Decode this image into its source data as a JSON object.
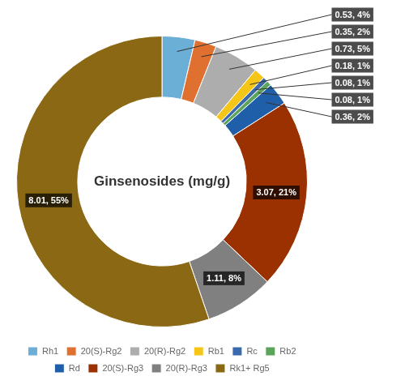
{
  "chart_data": {
    "type": "doughnut",
    "title": "Ginsenosides (mg/g)",
    "categories": [
      "Rh1",
      "20(S)-Rg2",
      "20(R)-Rg2",
      "Rb1",
      "Rc",
      "Rb2",
      "Rd",
      "20(S)-Rg3",
      "20(R)-Rg3",
      "Rk1+ Rg5"
    ],
    "values": [
      0.53,
      0.35,
      0.73,
      0.18,
      0.08,
      0.08,
      0.36,
      3.07,
      1.11,
      8.01
    ],
    "value_labels": [
      "0.53, 4%",
      "0.35, 2%",
      "0.73, 5%",
      "0.18, 1%",
      "0.08, 1%",
      "0.08, 1%",
      "0.36, 2%",
      "3.07, 21%",
      "1.11, 8%",
      "8.01, 55%"
    ],
    "colors": [
      "#6BAED6",
      "#E07030",
      "#ADADAD",
      "#F5C518",
      "#3A6AAD",
      "#5CA35C",
      "#1F5EA8",
      "#9B3000",
      "#808080",
      "#8B6914"
    ],
    "data_labels": true,
    "legend": "bottom"
  }
}
